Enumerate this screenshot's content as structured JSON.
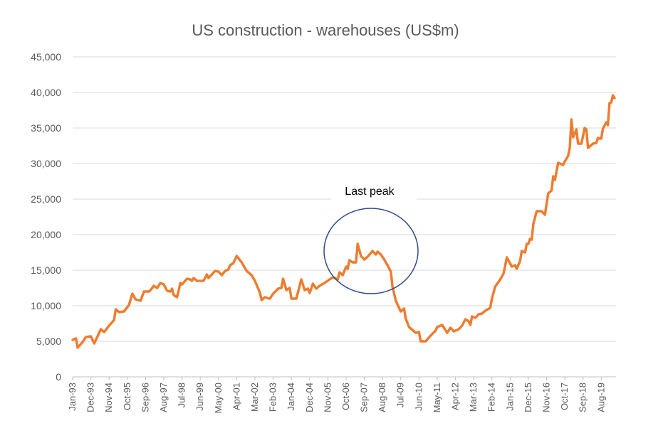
{
  "chart_data": {
    "type": "line",
    "title": "US construction - warehouses (US$m)",
    "xlabel": "",
    "ylabel": "",
    "ylim": [
      0,
      45000
    ],
    "yticks": [
      "0",
      "5,000",
      "10,000",
      "15,000",
      "20,000",
      "25,000",
      "30,000",
      "35,000",
      "40,000",
      "45,000"
    ],
    "xticks": [
      "Jan-93",
      "Dec-93",
      "Nov-94",
      "Oct-95",
      "Sep-96",
      "Aug-97",
      "Jul-98",
      "Jun-99",
      "May-00",
      "Apr-01",
      "Mar-02",
      "Feb-03",
      "Jan-04",
      "Dec-04",
      "Nov-05",
      "Oct-06",
      "Sep-07",
      "Aug-08",
      "Jul-09",
      "Jun-10",
      "May-11",
      "Apr-12",
      "Mar-13",
      "Feb-14",
      "Jan-15",
      "Dec-15",
      "Nov-16",
      "Oct-17",
      "Sep-18",
      "Aug-19"
    ],
    "xlim": [
      "Jan-93",
      "Apr-20"
    ],
    "grid": "horizontal",
    "legend": "none",
    "line_color": "#ED7D31",
    "annotation": {
      "text": "Last peak",
      "shape": "ellipse",
      "color": "#2F4A8A",
      "around": [
        "Feb-06",
        "Nov-08"
      ]
    },
    "series": [
      {
        "x": [
          "Jan-93",
          "Mar-93",
          "Apr-93",
          "Jul-93",
          "Sep-93",
          "Dec-93",
          "Feb-94",
          "Jun-94",
          "Aug-94",
          "Nov-94",
          "Feb-95",
          "Mar-95",
          "May-95",
          "Aug-95",
          "Oct-95",
          "Nov-95",
          "Jan-96",
          "Mar-96",
          "Jun-96",
          "Aug-96",
          "Nov-96",
          "Dec-96",
          "Feb-97",
          "Apr-97",
          "Jun-97",
          "Aug-97",
          "Oct-97",
          "Dec-97",
          "Jan-98",
          "Feb-98",
          "Apr-98",
          "Jun-98",
          "Jul-98",
          "Oct-98",
          "Dec-98",
          "Jan-99",
          "Feb-99",
          "Apr-99",
          "Aug-99",
          "Oct-99",
          "Nov-99",
          "Jan-00",
          "Mar-00",
          "May-00",
          "Jul-00",
          "Sep-00",
          "Nov-00",
          "Dec-00",
          "Feb-01",
          "Apr-01",
          "Jun-01",
          "Jul-01",
          "Oct-01",
          "Jan-02",
          "Mar-02",
          "May-02",
          "Jun-02",
          "Jul-02",
          "Sep-02",
          "Dec-02",
          "Feb-03",
          "May-03",
          "Jul-03",
          "Aug-03",
          "Oct-03",
          "Dec-03",
          "Jan-04",
          "Apr-04",
          "Jul-04",
          "Sep-04",
          "Nov-04",
          "Dec-04",
          "Feb-05",
          "Apr-05",
          "Jun-05",
          "Sep-05",
          "Dec-05",
          "Feb-06",
          "May-06",
          "Jun-06",
          "Aug-06",
          "Oct-06",
          "Nov-06",
          "Dec-06",
          "Feb-07",
          "Apr-07",
          "May-07",
          "Jul-07",
          "Sep-07",
          "Nov-07",
          "Feb-08",
          "Apr-08",
          "May-08",
          "Jul-08",
          "Sep-08",
          "Nov-08",
          "Jan-09",
          "Feb-09",
          "Apr-09",
          "Jul-09",
          "Sep-09",
          "Oct-09",
          "Dec-09",
          "Apr-10",
          "Jun-10",
          "Jul-10",
          "Oct-10",
          "Jan-11",
          "Apr-11",
          "May-11",
          "Aug-11",
          "Nov-11",
          "Jan-12",
          "Mar-12",
          "Jun-12",
          "Aug-12",
          "Oct-12",
          "Dec-12",
          "Jan-13",
          "Feb-13",
          "Apr-13",
          "Jun-13",
          "Aug-13",
          "Oct-13",
          "Jan-14",
          "Feb-14",
          "Apr-14",
          "Jul-14",
          "Sep-14",
          "Nov-14",
          "Feb-15",
          "Apr-15",
          "May-15",
          "Jul-15",
          "Aug-15",
          "Oct-15",
          "Nov-15",
          "Dec-15",
          "Jan-16",
          "Feb-16",
          "Mar-16",
          "May-16",
          "Aug-16",
          "Oct-16",
          "Dec-16",
          "Feb-17",
          "Mar-17",
          "Apr-17",
          "Jun-17",
          "Sep-17",
          "Oct-17",
          "Dec-17",
          "Jan-18",
          "Feb-18",
          "Mar-18",
          "May-18",
          "Jun-18",
          "Aug-18",
          "Oct-18",
          "Nov-18",
          "Dec-18",
          "Mar-19",
          "May-19",
          "Jun-19",
          "Aug-19",
          "Sep-19",
          "Nov-19",
          "Dec-19",
          "Jan-20",
          "Feb-20",
          "Mar-20",
          "Apr-20"
        ],
        "values": [
          5200,
          5400,
          4100,
          4900,
          5600,
          5700,
          4700,
          6700,
          6300,
          7200,
          8000,
          9500,
          9100,
          9200,
          9800,
          10100,
          11700,
          10900,
          10700,
          12000,
          12000,
          12200,
          12800,
          12500,
          13200,
          13000,
          12100,
          12000,
          12400,
          11500,
          11200,
          13200,
          13000,
          13800,
          13700,
          13500,
          13900,
          13500,
          13500,
          14400,
          13900,
          14400,
          14900,
          14800,
          14300,
          14900,
          15100,
          15700,
          16000,
          17000,
          16400,
          16100,
          14900,
          14300,
          13500,
          12400,
          11800,
          10800,
          11200,
          11000,
          11700,
          12400,
          12500,
          13800,
          12200,
          12500,
          11000,
          11000,
          13700,
          12200,
          12400,
          11800,
          13100,
          12400,
          12800,
          13200,
          13700,
          14000,
          13700,
          14700,
          14300,
          15500,
          15200,
          16400,
          16100,
          16100,
          18700,
          17000,
          16500,
          16900,
          17700,
          17200,
          17600,
          17200,
          16500,
          15700,
          14800,
          12700,
          10700,
          9200,
          9600,
          8200,
          7000,
          6200,
          6300,
          5000,
          5000,
          5800,
          6500,
          7000,
          7300,
          6200,
          6900,
          6400,
          6700,
          7200,
          8100,
          7800,
          7300,
          8500,
          8300,
          8800,
          8900,
          9300,
          9700,
          11000,
          12700,
          13700,
          14500,
          16800,
          15500,
          15700,
          15200,
          16300,
          17700,
          17500,
          18700,
          18700,
          19400,
          19300,
          21500,
          23300,
          23300,
          22800,
          25800,
          26200,
          28200,
          27700,
          30100,
          29800,
          30300,
          31100,
          32200,
          36200,
          33700,
          34800,
          32800,
          32800,
          35000,
          34800,
          32200,
          32800,
          32900,
          33600,
          33500,
          34900,
          35800,
          35400,
          38500,
          38600,
          39600,
          39200
        ]
      }
    ]
  }
}
